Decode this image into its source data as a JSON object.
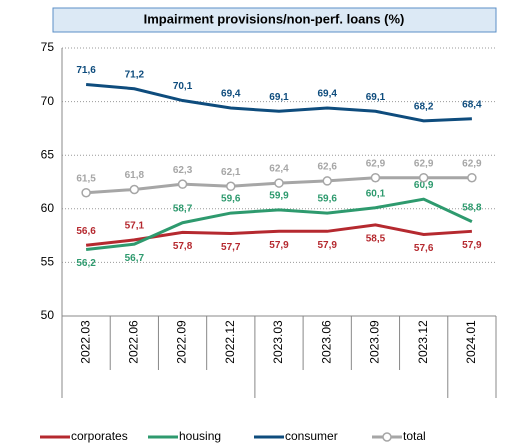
{
  "chart_data": {
    "type": "line",
    "title": "Impairment provisions/non-perf. loans (%)",
    "categories": [
      "2022.03",
      "2022.06",
      "2022.09",
      "2022.12",
      "2023.03",
      "2023.06",
      "2023.09",
      "2023.12",
      "2024.01"
    ],
    "series": [
      {
        "name": "corporates",
        "color": "#b5292f",
        "values": [
          56.6,
          57.1,
          57.8,
          57.7,
          57.9,
          57.9,
          58.5,
          57.6,
          57.9
        ],
        "value_labels": [
          "56,6",
          "57,1",
          "57,8",
          "57,7",
          "57,9",
          "57,9",
          "58,5",
          "57,6",
          "57,9"
        ]
      },
      {
        "name": "housing",
        "color": "#2e9a6e",
        "values": [
          56.2,
          56.7,
          58.7,
          59.6,
          59.9,
          59.6,
          60.1,
          60.9,
          58.8
        ],
        "value_labels": [
          "56,2",
          "56,7",
          "58,7",
          "59,6",
          "59,9",
          "59,6",
          "60,1",
          "60,9",
          "58,8"
        ]
      },
      {
        "name": "consumer",
        "color": "#0e4c7d",
        "values": [
          71.6,
          71.2,
          70.1,
          69.4,
          69.1,
          69.4,
          69.1,
          68.2,
          68.4
        ],
        "value_labels": [
          "71,6",
          "71,2",
          "70,1",
          "69,4",
          "69,1",
          "69,4",
          "69,1",
          "68,2",
          "68,4"
        ]
      },
      {
        "name": "total",
        "color": "#a6a6a6",
        "marker": "circle",
        "values": [
          61.5,
          61.8,
          62.3,
          62.1,
          62.4,
          62.6,
          62.9,
          62.9,
          62.9
        ],
        "value_labels": [
          "61,5",
          "61,8",
          "62,3",
          "62,1",
          "62,4",
          "62,6",
          "62,9",
          "62,9",
          "62,9"
        ]
      }
    ],
    "ylim": [
      50,
      75
    ],
    "yticks": [
      50,
      55,
      60,
      65,
      70,
      75
    ],
    "grid": true,
    "legend": "bottom"
  }
}
